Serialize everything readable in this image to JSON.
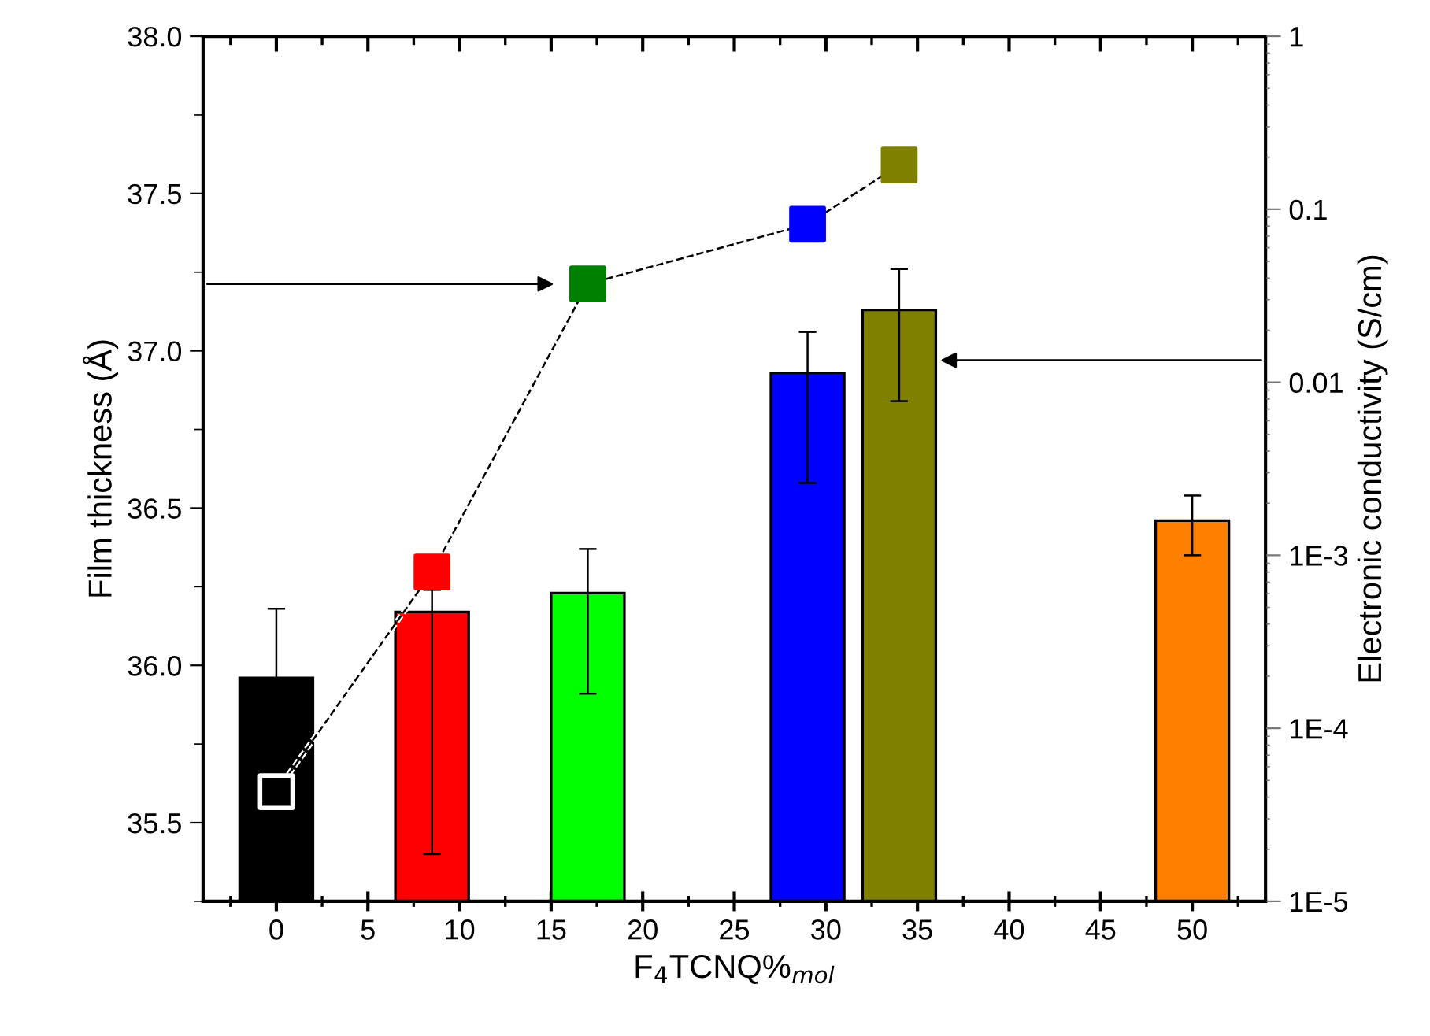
{
  "chart_data": {
    "type": "bar",
    "xlabel": "F$_{4}$TCNQ%$_{mol}$",
    "ylabel": "Film thickness (Å)",
    "y2label": "Electronic conductivity (S/cm)",
    "x": [
      0,
      8.5,
      17,
      29,
      34,
      50
    ],
    "xlim": [
      -4,
      54
    ],
    "xticks": [
      0,
      5,
      10,
      15,
      20,
      25,
      30,
      35,
      40,
      45,
      50
    ],
    "ylim": [
      35.25,
      38.0
    ],
    "yticks": [
      {
        "value": 35.5,
        "label": "35.5"
      },
      {
        "value": 36.0,
        "label": "36.0"
      },
      {
        "value": 36.5,
        "label": "36.5"
      },
      {
        "value": 37.0,
        "label": "37.0"
      },
      {
        "value": 37.5,
        "label": "37.5"
      },
      {
        "value": 38.0,
        "label": "38.0"
      }
    ],
    "y2lim": [
      1e-05,
      1
    ],
    "y2ticks": [
      {
        "value": 1e-05,
        "label": "1E-5"
      },
      {
        "value": 0.0001,
        "label": "1E-4"
      },
      {
        "value": 0.001,
        "label": "1E-3"
      },
      0.01,
      0.1,
      1
    ],
    "log": "y2",
    "grid": false,
    "series": [
      {
        "colors": [
          "#000000",
          "#ff0000",
          "#00ff00",
          "#0000ff",
          "#808000",
          "#ff8000"
        ],
        "values": [
          35.96,
          36.17,
          36.23,
          36.93,
          37.13,
          36.46
        ],
        "errors": [
          [
            35.96,
            36.18
          ],
          [
            35.4,
            36.24
          ],
          [
            35.91,
            36.37
          ],
          [
            36.58,
            37.06
          ],
          [
            36.84,
            37.26
          ],
          [
            36.35,
            36.54
          ]
        ]
      },
      {
        "type": "line",
        "axis": "y2",
        "marker": "square",
        "line_style": "dashed",
        "color": "#000000",
        "colors": [
          "#000000",
          "#ff0000",
          "#008000",
          "#0000ff",
          "#808000"
        ],
        "x": [
          0,
          8.5,
          17,
          29,
          34
        ],
        "values": [
          4.3e-05,
          0.0008,
          0.037,
          0.082,
          0.18
        ]
      }
    ]
  }
}
